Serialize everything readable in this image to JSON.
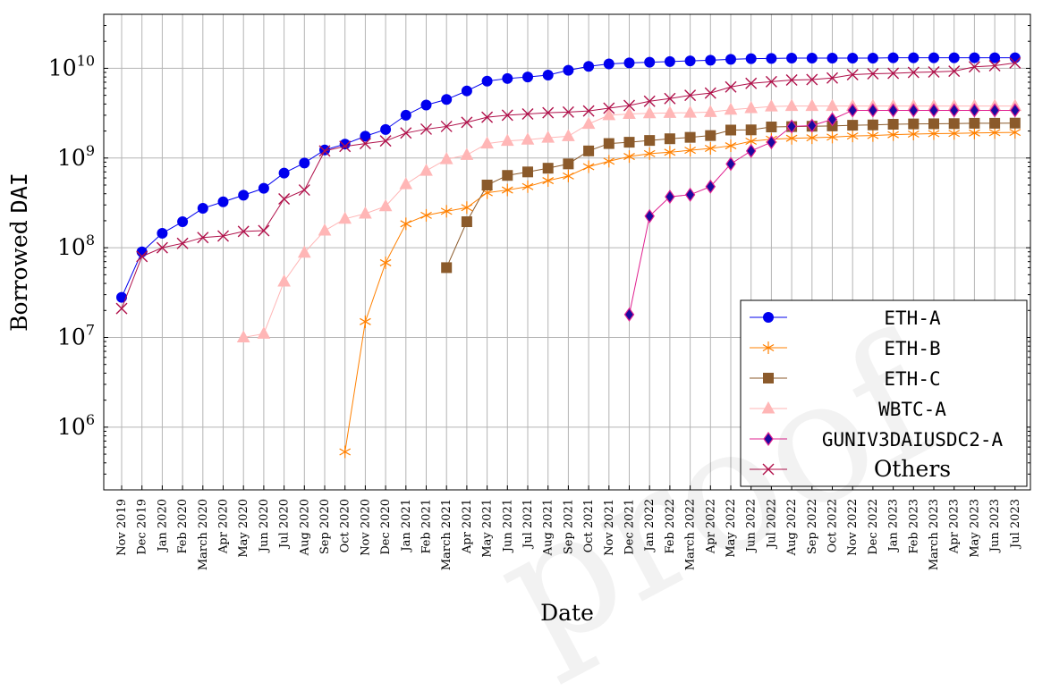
{
  "chart_data": {
    "type": "line",
    "xlabel": "Date",
    "ylabel_parts": [
      "Borrowed ",
      "DAI"
    ],
    "y_scale": "log",
    "ylim": [
      200000,
      40000000000
    ],
    "y_ticks": [
      {
        "value": 1000000,
        "label_base": "10",
        "label_exp": "6"
      },
      {
        "value": 10000000,
        "label_base": "10",
        "label_exp": "7"
      },
      {
        "value": 100000000,
        "label_base": "10",
        "label_exp": "8"
      },
      {
        "value": 1000000000,
        "label_base": "10",
        "label_exp": "9"
      },
      {
        "value": 10000000000,
        "label_base": "10",
        "label_exp": "10"
      }
    ],
    "grid": true,
    "legend_position": "bottom-right",
    "categories": [
      "Nov 2019",
      "Dec 2019",
      "Jan 2020",
      "Feb 2020",
      "March 2020",
      "Apr 2020",
      "May 2020",
      "Jun 2020",
      "Jul 2020",
      "Aug 2020",
      "Sep 2020",
      "Oct 2020",
      "Nov 2020",
      "Dec 2020",
      "Jan 2021",
      "Feb 2021",
      "March 2021",
      "Apr 2021",
      "May 2021",
      "Jun 2021",
      "Jul 2021",
      "Aug 2021",
      "Sep 2021",
      "Oct 2021",
      "Nov 2021",
      "Dec 2021",
      "Jan 2022",
      "Feb 2022",
      "March 2022",
      "Apr 2022",
      "May 2022",
      "Jun 2022",
      "Jul 2022",
      "Aug 2022",
      "Sep 2022",
      "Oct 2022",
      "Nov 2022",
      "Dec 2022",
      "Jan 2023",
      "Feb 2023",
      "March 2023",
      "Apr 2023",
      "May 2023",
      "Jun 2023",
      "Jul 2023"
    ],
    "series": [
      {
        "name": "ETH-A",
        "color": "#0000ee",
        "marker": "circle",
        "values": [
          28000000,
          90000000,
          145000000,
          195000000,
          275000000,
          325000000,
          385000000,
          460000000,
          680000000,
          880000000,
          1230000000,
          1430000000,
          1750000000,
          2080000000,
          3000000000,
          3900000000,
          4500000000,
          5600000000,
          7200000000,
          7700000000,
          8000000000,
          8400000000,
          9500000000,
          10500000000,
          11200000000,
          11500000000,
          11700000000,
          11900000000,
          12100000000,
          12300000000,
          12600000000,
          12800000000,
          12900000000,
          13000000000,
          13000000000,
          13000000000,
          13000000000,
          13000000000,
          13100000000,
          13100000000,
          13100000000,
          13100000000,
          13100000000,
          13100000000,
          13100000000
        ]
      },
      {
        "name": "ETH-B",
        "color": "#ff8000",
        "marker": "star",
        "values": [
          null,
          null,
          null,
          null,
          null,
          null,
          null,
          null,
          null,
          null,
          null,
          530000,
          15000000,
          68000000,
          185000000,
          230000000,
          255000000,
          280000000,
          410000000,
          440000000,
          480000000,
          560000000,
          630000000,
          800000000,
          920000000,
          1040000000,
          1120000000,
          1160000000,
          1220000000,
          1280000000,
          1370000000,
          1540000000,
          1620000000,
          1660000000,
          1680000000,
          1710000000,
          1760000000,
          1780000000,
          1820000000,
          1850000000,
          1870000000,
          1880000000,
          1900000000,
          1920000000,
          1930000000
        ]
      },
      {
        "name": "ETH-C",
        "color": "#8b5a2b",
        "marker": "square",
        "values": [
          null,
          null,
          null,
          null,
          null,
          null,
          null,
          null,
          null,
          null,
          null,
          null,
          null,
          null,
          null,
          null,
          60000000,
          195000000,
          500000000,
          640000000,
          700000000,
          770000000,
          860000000,
          1200000000,
          1450000000,
          1500000000,
          1570000000,
          1640000000,
          1700000000,
          1780000000,
          2050000000,
          2060000000,
          2220000000,
          2240000000,
          2260000000,
          2280000000,
          2320000000,
          2340000000,
          2380000000,
          2400000000,
          2410000000,
          2420000000,
          2440000000,
          2440000000,
          2450000000
        ]
      },
      {
        "name": "WBTC-A",
        "color": "#ffb6b6",
        "marker": "triangle",
        "values": [
          null,
          null,
          null,
          null,
          null,
          null,
          10000000,
          11000000,
          42000000,
          88000000,
          155000000,
          210000000,
          240000000,
          290000000,
          510000000,
          720000000,
          970000000,
          1080000000,
          1450000000,
          1550000000,
          1600000000,
          1680000000,
          1750000000,
          2400000000,
          3000000000,
          3100000000,
          3150000000,
          3180000000,
          3200000000,
          3250000000,
          3450000000,
          3600000000,
          3750000000,
          3800000000,
          3800000000,
          3800000000,
          3800000000,
          3800000000,
          3800000000,
          3800000000,
          3800000000,
          3800000000,
          3800000000,
          3800000000,
          3800000000
        ]
      },
      {
        "name": "GUNIV3DAIUSDC2-A",
        "color": "#e0208f",
        "markerFill": "#1a0aa0",
        "marker": "diamond",
        "values": [
          null,
          null,
          null,
          null,
          null,
          null,
          null,
          null,
          null,
          null,
          null,
          null,
          null,
          null,
          null,
          null,
          null,
          null,
          null,
          null,
          null,
          null,
          null,
          null,
          null,
          18000000,
          225000000,
          370000000,
          390000000,
          480000000,
          860000000,
          1200000000,
          1500000000,
          2250000000,
          2300000000,
          2700000000,
          3400000000,
          3400000000,
          3400000000,
          3400000000,
          3400000000,
          3400000000,
          3400000000,
          3400000000,
          3400000000
        ]
      },
      {
        "name": "Others",
        "color": "#b0104a",
        "marker": "x",
        "values": [
          21000000,
          80000000,
          100000000,
          112000000,
          130000000,
          135000000,
          152000000,
          155000000,
          350000000,
          440000000,
          1200000000,
          1350000000,
          1450000000,
          1550000000,
          1900000000,
          2100000000,
          2250000000,
          2500000000,
          2850000000,
          3000000000,
          3100000000,
          3200000000,
          3250000000,
          3350000000,
          3600000000,
          3850000000,
          4300000000,
          4600000000,
          5000000000,
          5300000000,
          6200000000,
          6800000000,
          7100000000,
          7400000000,
          7500000000,
          7800000000,
          8500000000,
          8700000000,
          8800000000,
          9000000000,
          9100000000,
          9300000000,
          10400000000,
          10700000000,
          11500000000
        ]
      }
    ]
  }
}
